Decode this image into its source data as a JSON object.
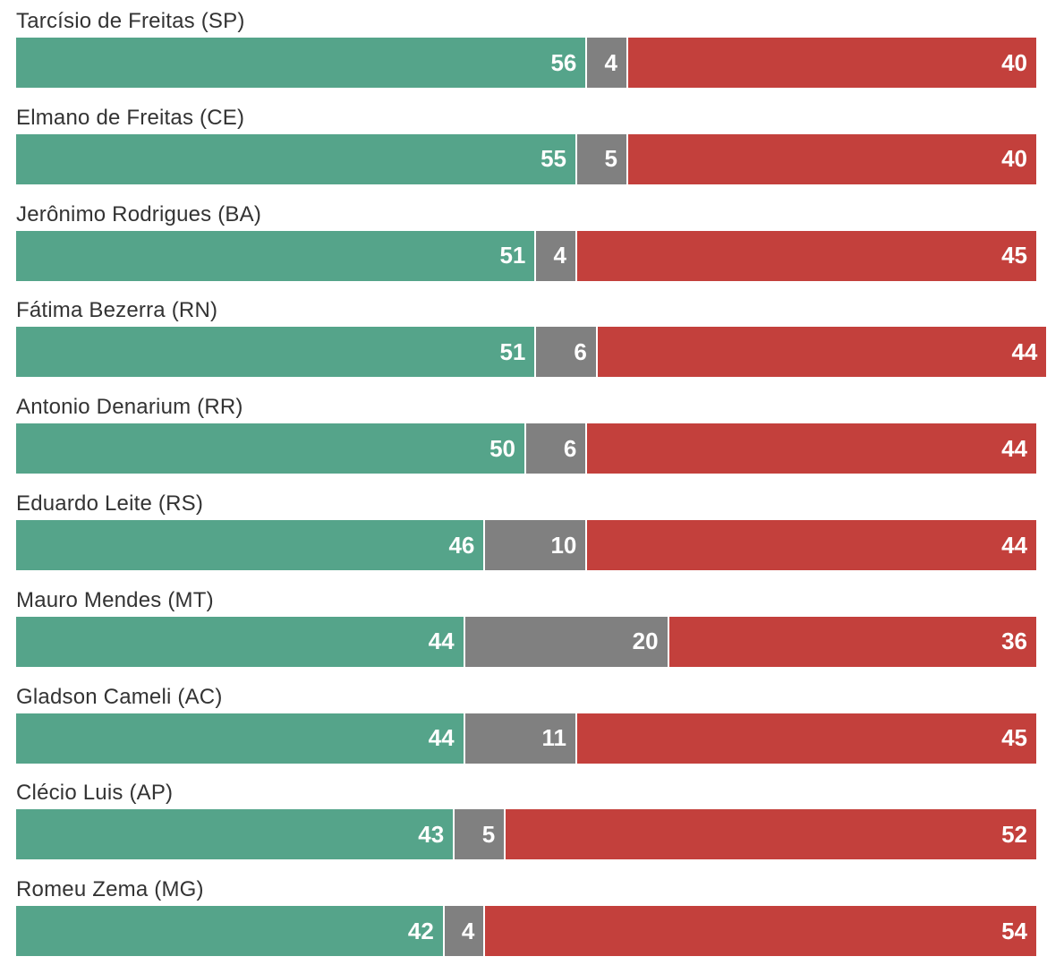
{
  "chart_data": {
    "type": "bar",
    "orientation": "horizontal",
    "stacked": true,
    "grid": false,
    "categories": [
      "Tarcísio de Freitas (SP)",
      "Elmano de Freitas (CE)",
      "Jerônimo Rodrigues (BA)",
      "Fátima Bezerra (RN)",
      "Antonio Denarium (RR)",
      "Eduardo Leite (RS)",
      "Mauro Mendes (MT)",
      "Gladson Cameli (AC)",
      "Clécio Luis (AP)",
      "Romeu Zema (MG)"
    ],
    "series": [
      {
        "color": "#55a48a",
        "values": [
          56,
          55,
          51,
          51,
          50,
          46,
          44,
          44,
          43,
          42
        ]
      },
      {
        "color": "#808080",
        "values": [
          4,
          5,
          4,
          6,
          6,
          10,
          20,
          11,
          5,
          4
        ]
      },
      {
        "color": "#c3403c",
        "values": [
          40,
          40,
          45,
          44,
          44,
          44,
          36,
          45,
          52,
          54
        ]
      }
    ],
    "xlim": [
      0,
      100
    ]
  }
}
